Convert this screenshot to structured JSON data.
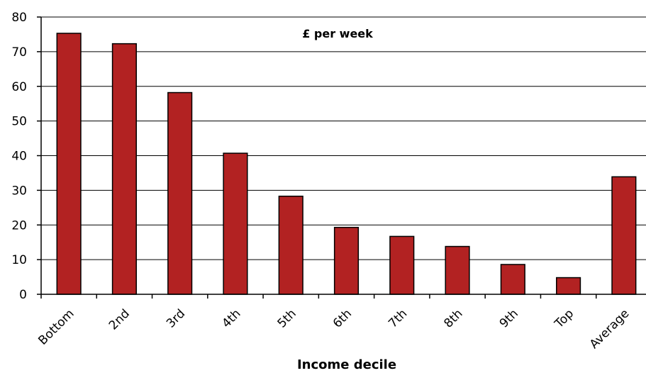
{
  "chart_data": {
    "type": "bar",
    "title": "",
    "annotation": "£ per week",
    "xlabel": "Income decile",
    "ylabel": "",
    "categories": [
      "Bottom",
      "2nd",
      "3rd",
      "4th",
      "5th",
      "6th",
      "7th",
      "8th",
      "9th",
      "Top",
      "Average"
    ],
    "values": [
      75.3,
      72.3,
      58.2,
      40.7,
      28.3,
      19.3,
      16.7,
      13.8,
      8.6,
      4.8,
      33.9
    ],
    "ylim": [
      0,
      80
    ],
    "yticks": [
      "0",
      "10",
      "20",
      "30",
      "40",
      "50",
      "60",
      "70",
      "80"
    ],
    "grid": true,
    "legend": "none",
    "bar_color": "#b22222"
  }
}
